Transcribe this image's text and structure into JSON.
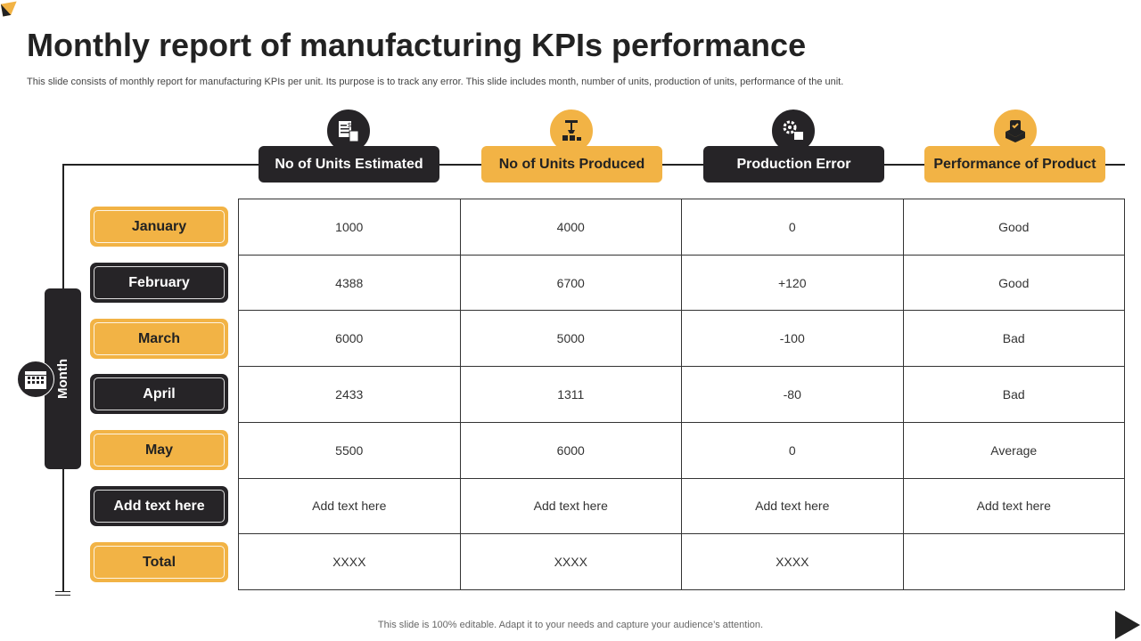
{
  "title": "Monthly report of manufacturing KPIs performance",
  "subtitle": "This slide consists of monthly report for manufacturing KPIs per unit. Its purpose is to track any error. This slide includes month, number of units, production of units, performance of the unit.",
  "side_label": "Month",
  "headers": [
    {
      "label": "No of Units Estimated",
      "icon": "invoice-calculator-icon"
    },
    {
      "label": "No of Units Produced",
      "icon": "robotic-arm-icon"
    },
    {
      "label": "Production Error",
      "icon": "gears-box-icon"
    },
    {
      "label": "Performance of Product",
      "icon": "quality-box-icon"
    }
  ],
  "rows": [
    {
      "month": "January",
      "cells": [
        "1000",
        "4000",
        "0",
        "Good"
      ]
    },
    {
      "month": "February",
      "cells": [
        "4388",
        "6700",
        "+120",
        "Good"
      ]
    },
    {
      "month": "March",
      "cells": [
        "6000",
        "5000",
        "-100",
        "Bad"
      ]
    },
    {
      "month": "April",
      "cells": [
        "2433",
        "1311",
        "-80",
        "Bad"
      ]
    },
    {
      "month": "May",
      "cells": [
        "5500",
        "6000",
        "0",
        "Average"
      ]
    },
    {
      "month": "Add text here",
      "cells": [
        "Add text here",
        "Add text here",
        "Add text here",
        "Add text here"
      ]
    },
    {
      "month": "Total",
      "cells": [
        "XXXX",
        "XXXX",
        "XXXX",
        ""
      ]
    }
  ],
  "footer": "This slide is 100% editable. Adapt it to your needs and capture your audience’s attention.",
  "colors": {
    "dark": "#262427",
    "gold": "#F2B345"
  }
}
